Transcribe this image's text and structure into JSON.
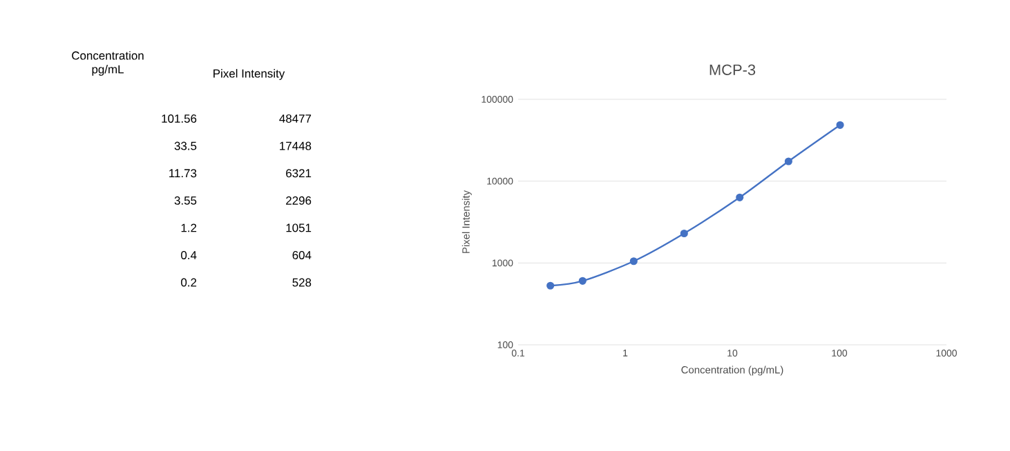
{
  "chart_data": [
    {
      "type": "other",
      "annotations": [
        "Concentration pg/mL",
        "Pixel Intensity",
        "101.56",
        "48477",
        "33.5",
        "17448",
        "11.73",
        "6321",
        "3.55",
        "2296",
        "1.2",
        "1051",
        "0.4",
        "604",
        "0.2",
        "528"
      ]
    },
    {
      "type": "line",
      "title": "MCP-3",
      "xlabel": "Concentration (pg/mL)",
      "ylabel": "Pixel Intensity",
      "x": [
        101.56,
        33.5,
        11.73,
        3.55,
        1.2,
        0.4,
        0.2
      ],
      "series": [
        {
          "color": "#4472c4",
          "values": [
            48477,
            17448,
            6321,
            2296,
            1051,
            604,
            528
          ]
        }
      ],
      "log": "xy",
      "xlim": [
        0.1,
        1000
      ],
      "ylim": [
        100,
        100000
      ],
      "xticks": [
        0.1,
        1,
        10,
        100,
        1000
      ],
      "yticks": [
        100,
        1000,
        10000,
        100000
      ],
      "grid": "y",
      "marker": "circle",
      "line_style": "solid"
    }
  ]
}
